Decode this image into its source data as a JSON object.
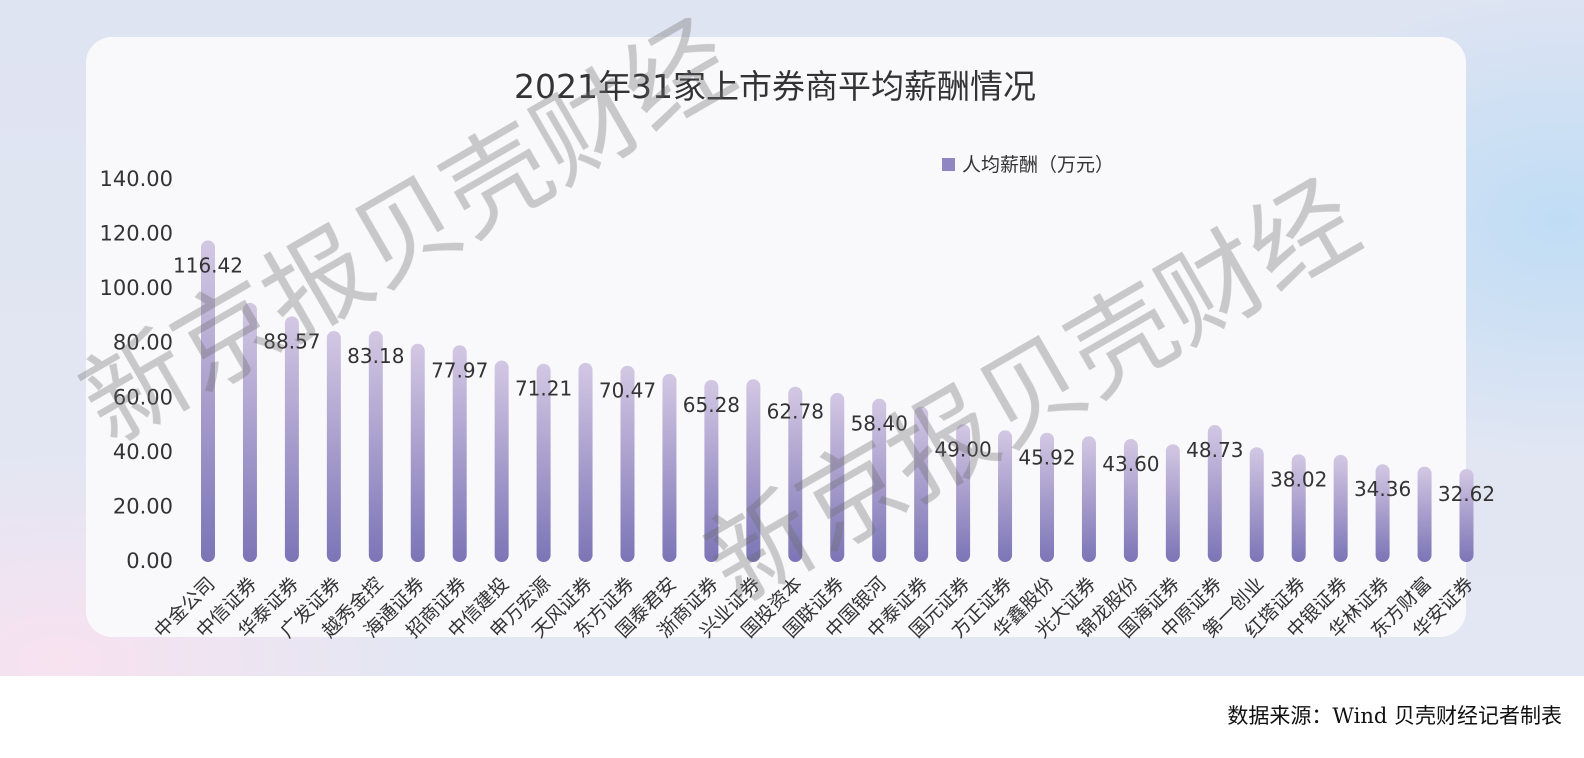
{
  "chart_data": {
    "type": "bar",
    "title": "2021年31家上市券商平均薪酬情况",
    "legend": {
      "label": "人均薪酬（万元）",
      "placement": "top-right"
    },
    "categories": [
      "中金公司",
      "中信证券",
      "华泰证券",
      "广发证券",
      "越秀金控",
      "海通证券",
      "招商证券",
      "中信建投",
      "申万宏源",
      "天风证券",
      "东方证券",
      "国泰君安",
      "浙商证券",
      "兴业证券",
      "国投资本",
      "国联证券",
      "中国银河",
      "中泰证券",
      "国元证券",
      "方正证券",
      "华鑫股份",
      "光大证券",
      "锦龙股份",
      "国海证券",
      "中原证券",
      "第一创业",
      "红塔证券",
      "中银证券",
      "华林证券",
      "东方财富",
      "华安证券"
    ],
    "series": [
      {
        "name": "人均薪酬（万元）",
        "values": [
          116.42,
          93.5,
          88.57,
          83.2,
          83.18,
          78.5,
          77.97,
          72.4,
          71.21,
          71.5,
          70.47,
          67.5,
          65.28,
          65.5,
          62.78,
          60.5,
          58.4,
          55.5,
          49.0,
          46.8,
          45.92,
          44.6,
          43.6,
          41.7,
          48.73,
          40.6,
          38.02,
          37.8,
          34.36,
          33.5,
          32.62
        ]
      }
    ],
    "data_labels": [
      "116.42",
      "",
      "88.57",
      "",
      "83.18",
      "",
      "77.97",
      "",
      "71.21",
      "",
      "70.47",
      "",
      "65.28",
      "",
      "62.78",
      "",
      "58.40",
      "",
      "49.00",
      "",
      "45.92",
      "",
      "43.60",
      "",
      "48.73",
      "",
      "38.02",
      "",
      "34.36",
      "",
      "32.62"
    ],
    "yticks": [
      "0.00",
      "20.00",
      "40.00",
      "60.00",
      "80.00",
      "100.00",
      "120.00",
      "140.00"
    ],
    "ylim": [
      0,
      140
    ],
    "grid": false,
    "xlabel": "",
    "ylabel": ""
  },
  "watermark": "新京报贝壳财经",
  "source_note": "数据来源：Wind 贝壳财经记者制表",
  "colors": {
    "bar_top": "#cfc3e0",
    "bar_bottom": "#7f77b8",
    "legend_marker": "#8f86c2",
    "text": "#333333"
  }
}
